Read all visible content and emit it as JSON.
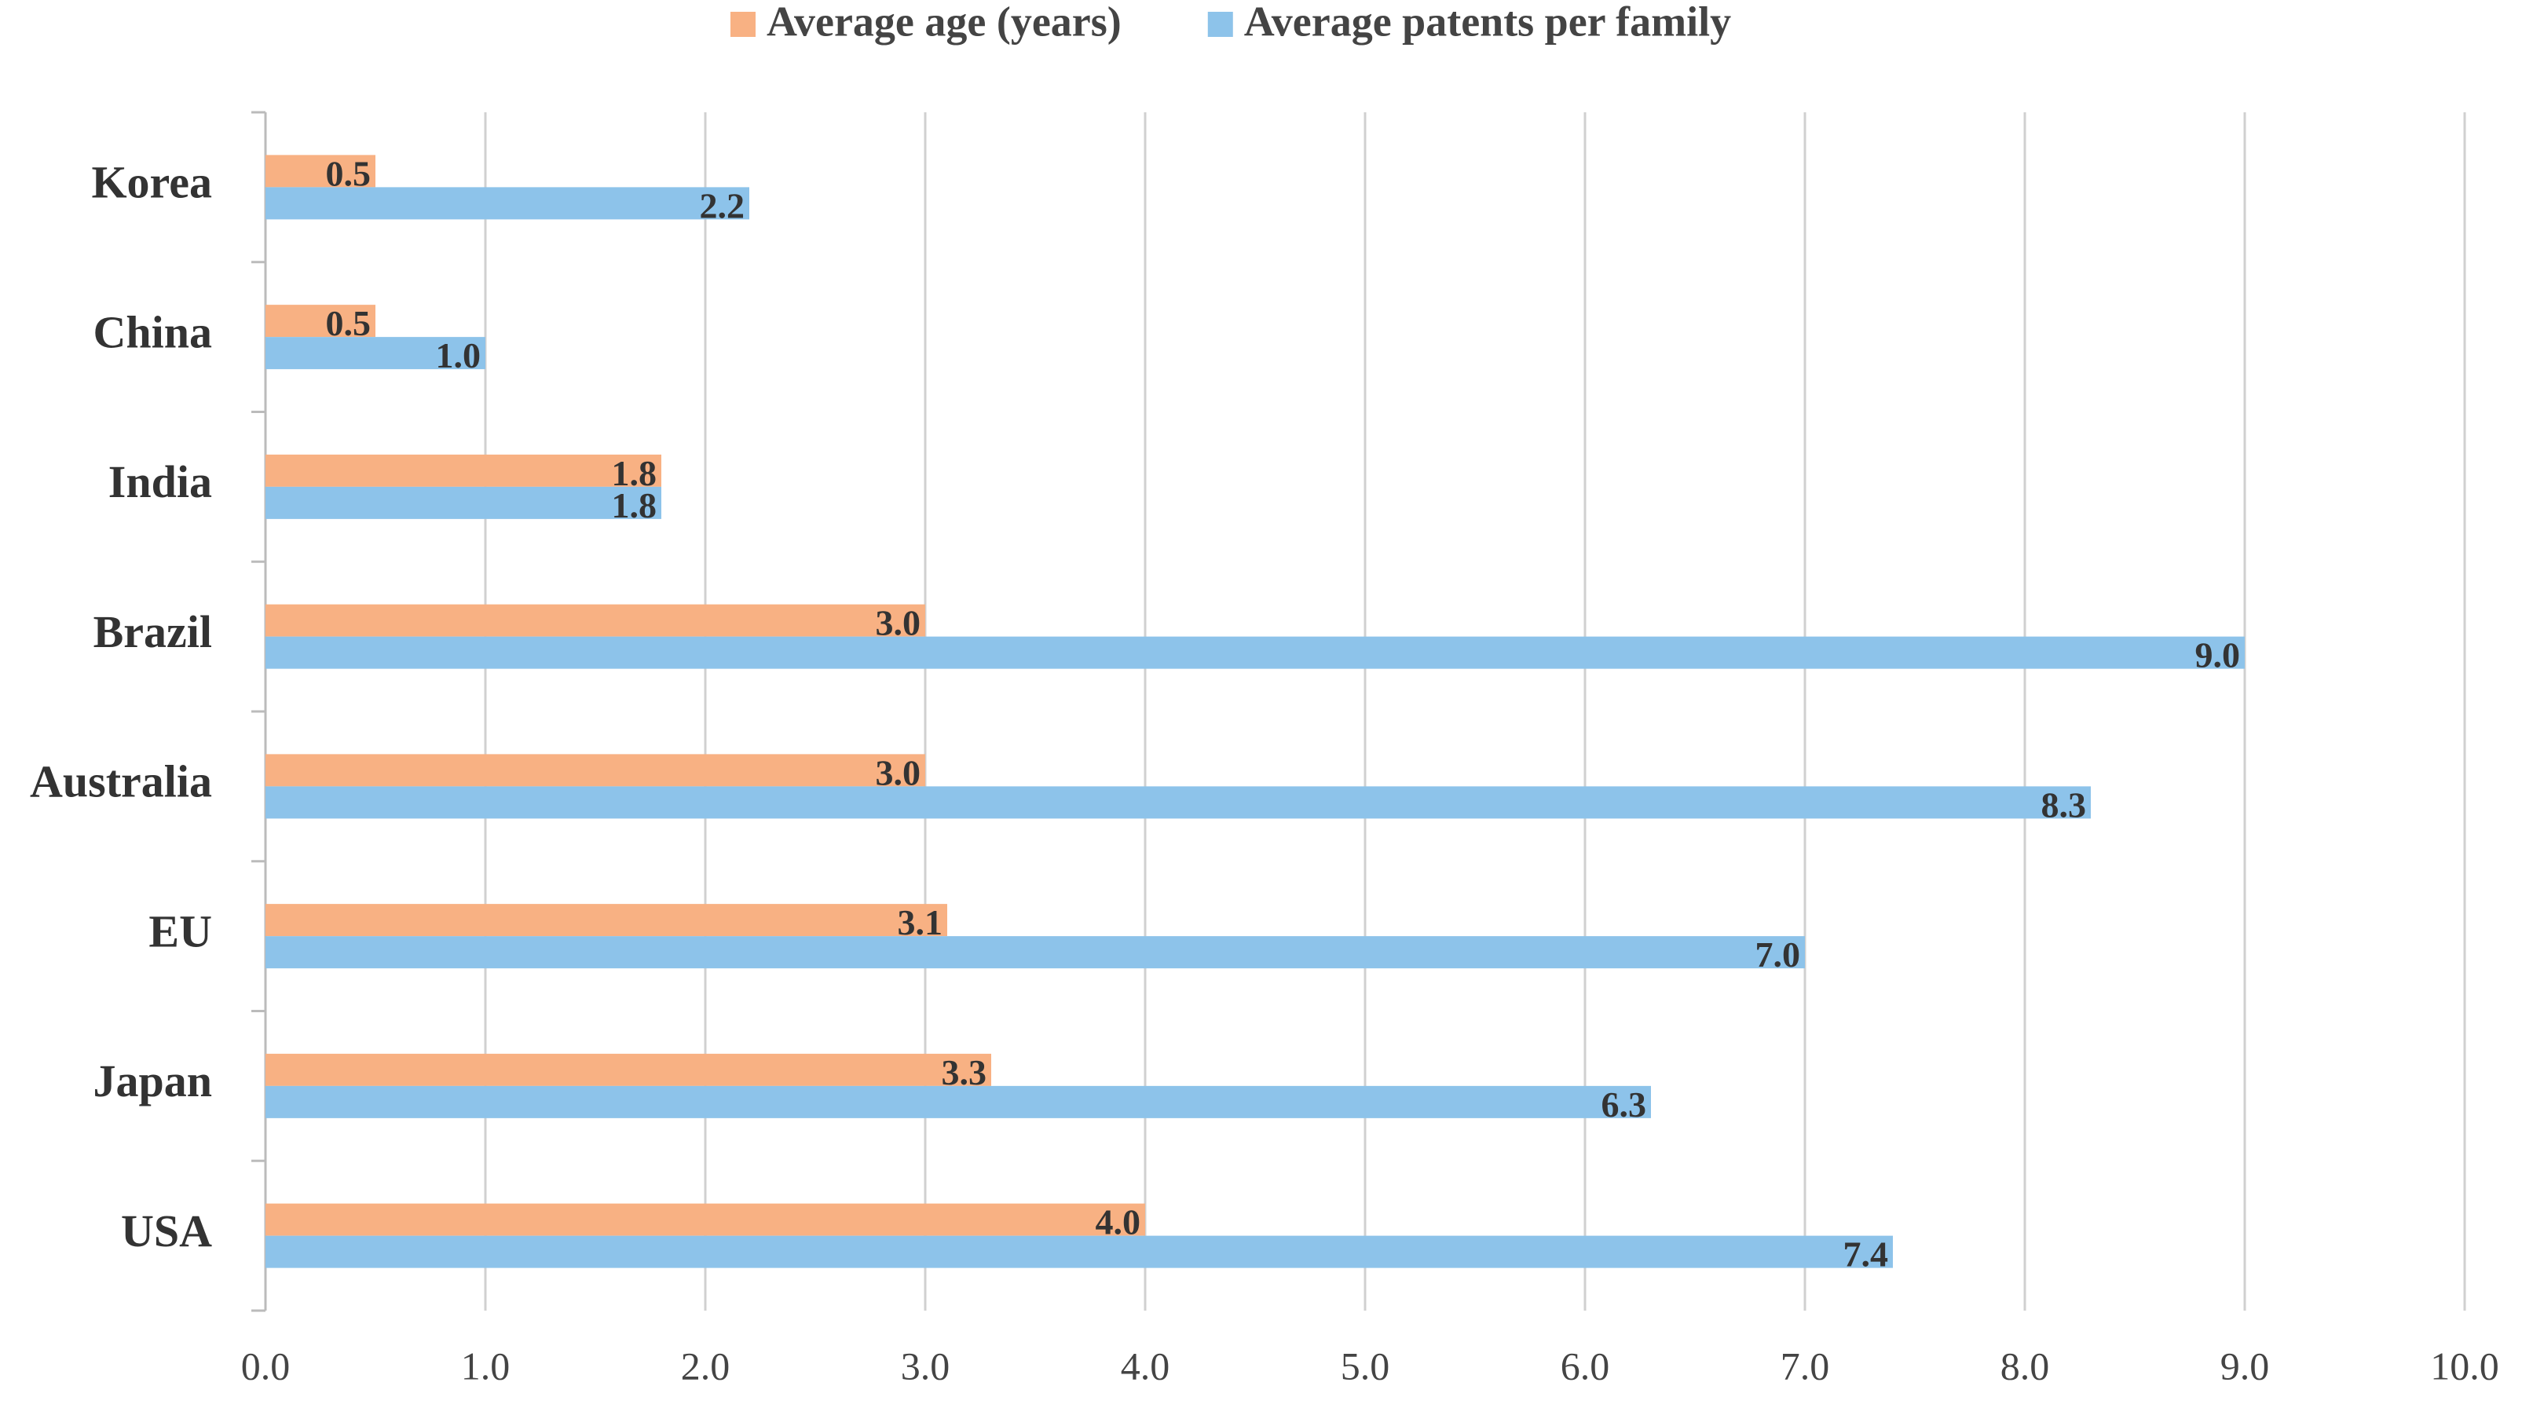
{
  "chart_data": {
    "type": "bar",
    "orientation": "horizontal",
    "categories": [
      "Korea",
      "China",
      "India",
      "Brazil",
      "Australia",
      "EU",
      "Japan",
      "USA"
    ],
    "series": [
      {
        "name": "Average age (years)",
        "color": "#F8B183",
        "values": [
          0.5,
          0.5,
          1.8,
          3.0,
          3.0,
          3.1,
          3.3,
          4.0
        ],
        "value_labels": [
          "0.5",
          "0.5",
          "1.8",
          "3.0",
          "3.0",
          "3.1",
          "3.3",
          "4.0"
        ]
      },
      {
        "name": "Average patents per family",
        "color": "#8DC3EA",
        "values": [
          2.2,
          1.0,
          1.8,
          9.0,
          8.3,
          7.0,
          6.3,
          7.4
        ],
        "value_labels": [
          "2.2",
          "1.0",
          "1.8",
          "9.0",
          "8.3",
          "7.0",
          "6.3",
          "7.4"
        ]
      }
    ],
    "xlim": [
      0,
      10
    ],
    "xticks": [
      {
        "value": 0,
        "label": "0.0"
      },
      {
        "value": 1,
        "label": "1.0"
      },
      {
        "value": 2,
        "label": "2.0"
      },
      {
        "value": 3,
        "label": "3.0"
      },
      {
        "value": 4,
        "label": "4.0"
      },
      {
        "value": 5,
        "label": "5.0"
      },
      {
        "value": 6,
        "label": "6.0"
      },
      {
        "value": 7,
        "label": "7.0"
      },
      {
        "value": 8,
        "label": "8.0"
      },
      {
        "value": 9,
        "label": "9.0"
      },
      {
        "value": 10,
        "label": "10.0"
      }
    ],
    "grid": true,
    "legend": "top"
  }
}
